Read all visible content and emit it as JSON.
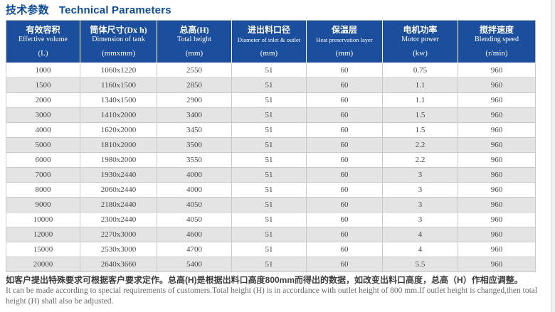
{
  "title": {
    "zh": "技术参数",
    "en": "Technical Parameters"
  },
  "table": {
    "columns": [
      {
        "zh": "有效容积",
        "en": "Effective volume",
        "unit": "(L)"
      },
      {
        "zh": "筒体尺寸(Dx h)",
        "en": "Dimension of tank",
        "unit": "(mmxmm)"
      },
      {
        "zh": "总高(H)",
        "en": "Total height",
        "unit": "(mm)"
      },
      {
        "zh": "进出料口径",
        "en": "Diameter of inlet & outlet",
        "unit": "(mm)"
      },
      {
        "zh": "保温层",
        "en": "Heat preservation layer",
        "unit": "(mm)"
      },
      {
        "zh": "电机功率",
        "en": "Motor power",
        "unit": "(kw)"
      },
      {
        "zh": "搅拌速度",
        "en": "Blending speed",
        "unit": "(r/min)"
      }
    ],
    "rows": [
      [
        "1000",
        "1060x1220",
        "2550",
        "51",
        "60",
        "0.75",
        "960"
      ],
      [
        "1500",
        "1160x1500",
        "2850",
        "51",
        "60",
        "1.1",
        "960"
      ],
      [
        "2000",
        "1340x1500",
        "2900",
        "51",
        "60",
        "1.1",
        "960"
      ],
      [
        "3000",
        "1410x2000",
        "3400",
        "51",
        "60",
        "1.5",
        "960"
      ],
      [
        "4000",
        "1620x2000",
        "3450",
        "51",
        "60",
        "1.5",
        "960"
      ],
      [
        "5000",
        "1810x2000",
        "3500",
        "51",
        "60",
        "2.2",
        "960"
      ],
      [
        "6000",
        "1980x2000",
        "3550",
        "51",
        "60",
        "2.2",
        "960"
      ],
      [
        "7000",
        "1930x2440",
        "4000",
        "51",
        "60",
        "3",
        "960"
      ],
      [
        "8000",
        "2060x2440",
        "4000",
        "51",
        "60",
        "3",
        "960"
      ],
      [
        "9000",
        "2180x2440",
        "4050",
        "51",
        "60",
        "3",
        "960"
      ],
      [
        "10000",
        "2300x2440",
        "4050",
        "51",
        "60",
        "3",
        "960"
      ],
      [
        "12000",
        "2270x3000",
        "4600",
        "51",
        "60",
        "4",
        "960"
      ],
      [
        "15000",
        "2530x3000",
        "4700",
        "51",
        "60",
        "4",
        "960"
      ],
      [
        "20000",
        "2640x3660",
        "5400",
        "51",
        "60",
        "5.5",
        "960"
      ]
    ]
  },
  "footnote": {
    "zh": "如客户提出特殊要求可根据客户要求定作。总高(H)是根据出料口高度800mm而得出的数据，如改变出料口高度，总高（H）作相应调整。",
    "en": "It can be made according to special requirements of customers.Total height (H) is in accordance with outlet height of 800 mm.If outlet height is changed,then total height (H) shall also be adjusted."
  },
  "colors": {
    "header_bg": "#1b4e9c",
    "title_blue": "#0b4a9f",
    "row_alt": "#e4e4e4",
    "border": "#c9c9c9"
  }
}
